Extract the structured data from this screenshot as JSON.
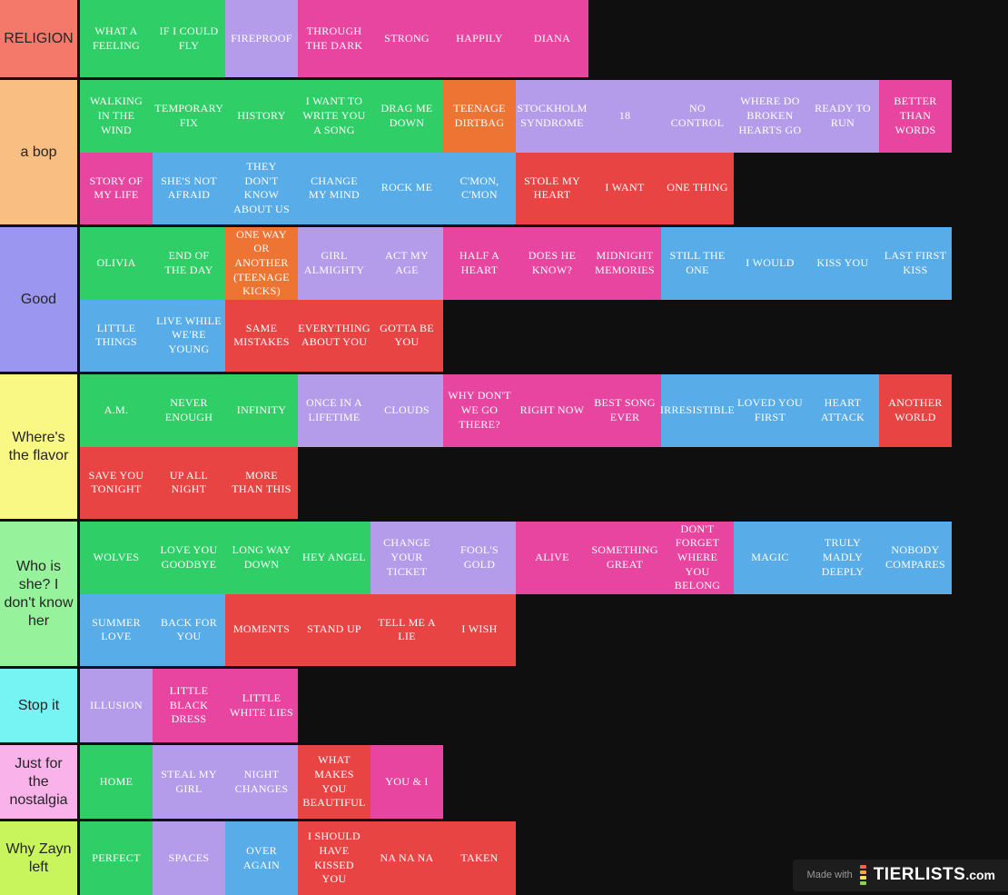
{
  "page": {
    "background": "#0f0f0f",
    "label_text_color": "#252525",
    "tile_text_color": "#ffffff"
  },
  "palette": {
    "green": "#2fce66",
    "orange": "#ee7434",
    "purple": "#b49ceb",
    "magenta": "#e7459f",
    "blue": "#58ace8",
    "red": "#e84444"
  },
  "tiers": [
    {
      "label": "RELIGION",
      "label_color": "#f4796b",
      "rows": [
        [
          {
            "title": "WHAT A FEELING",
            "color": "green"
          },
          {
            "title": "IF I COULD FLY",
            "color": "green"
          },
          {
            "title": "FIREPROOF",
            "color": "purple"
          },
          {
            "title": "THROUGH THE DARK",
            "color": "magenta"
          },
          {
            "title": "STRONG",
            "color": "magenta"
          },
          {
            "title": "HAPPILY",
            "color": "magenta"
          },
          {
            "title": "DIANA",
            "color": "magenta"
          }
        ]
      ]
    },
    {
      "label": "a bop",
      "label_color": "#f9be82",
      "rows": [
        [
          {
            "title": "WALKING IN THE WIND",
            "color": "green"
          },
          {
            "title": "TEMPORARY FIX",
            "color": "green"
          },
          {
            "title": "HISTORY",
            "color": "green"
          },
          {
            "title": "I WANT TO WRITE YOU A SONG",
            "color": "green"
          },
          {
            "title": "DRAG ME DOWN",
            "color": "green"
          },
          {
            "title": "TEENAGE DIRTBAG",
            "color": "orange"
          },
          {
            "title": "STOCKHOLM SYNDROME",
            "color": "purple"
          },
          {
            "title": "18",
            "color": "purple"
          },
          {
            "title": "NO CONTROL",
            "color": "purple"
          },
          {
            "title": "WHERE DO BROKEN HEARTS GO",
            "color": "purple"
          },
          {
            "title": "READY TO RUN",
            "color": "purple"
          },
          {
            "title": "BETTER THAN WORDS",
            "color": "magenta"
          }
        ],
        [
          {
            "title": "STORY OF MY LIFE",
            "color": "magenta"
          },
          {
            "title": "SHE'S NOT AFRAID",
            "color": "blue"
          },
          {
            "title": "THEY DON'T KNOW ABOUT US",
            "color": "blue"
          },
          {
            "title": "CHANGE MY MIND",
            "color": "blue"
          },
          {
            "title": "ROCK ME",
            "color": "blue"
          },
          {
            "title": "C'MON, C'MON",
            "color": "blue"
          },
          {
            "title": "STOLE MY HEART",
            "color": "red"
          },
          {
            "title": "I WANT",
            "color": "red"
          },
          {
            "title": "ONE THING",
            "color": "red"
          }
        ]
      ]
    },
    {
      "label": "Good",
      "label_color": "#9b97f0",
      "rows": [
        [
          {
            "title": "OLIVIA",
            "color": "green"
          },
          {
            "title": "END OF THE DAY",
            "color": "green"
          },
          {
            "title": "ONE WAY OR ANOTHER (TEENAGE KICKS)",
            "color": "orange"
          },
          {
            "title": "GIRL ALMIGHTY",
            "color": "purple"
          },
          {
            "title": "ACT MY AGE",
            "color": "purple"
          },
          {
            "title": "HALF A HEART",
            "color": "magenta"
          },
          {
            "title": "DOES HE KNOW?",
            "color": "magenta"
          },
          {
            "title": "MIDNIGHT MEMORIES",
            "color": "magenta"
          },
          {
            "title": "STILL THE ONE",
            "color": "blue"
          },
          {
            "title": "I WOULD",
            "color": "blue"
          },
          {
            "title": "KISS YOU",
            "color": "blue"
          },
          {
            "title": "LAST FIRST KISS",
            "color": "blue"
          }
        ],
        [
          {
            "title": "LITTLE THINGS",
            "color": "blue"
          },
          {
            "title": "LIVE WHILE WE'RE YOUNG",
            "color": "blue"
          },
          {
            "title": "SAME MISTAKES",
            "color": "red"
          },
          {
            "title": "EVERYTHING ABOUT YOU",
            "color": "red"
          },
          {
            "title": "GOTTA BE YOU",
            "color": "red"
          }
        ]
      ]
    },
    {
      "label": "Where's the flavor",
      "label_color": "#faf884",
      "rows": [
        [
          {
            "title": "A.M.",
            "color": "green"
          },
          {
            "title": "NEVER ENOUGH",
            "color": "green"
          },
          {
            "title": "INFINITY",
            "color": "green"
          },
          {
            "title": "ONCE IN A LIFETIME",
            "color": "purple"
          },
          {
            "title": "CLOUDS",
            "color": "purple"
          },
          {
            "title": "WHY DON'T WE GO THERE?",
            "color": "magenta"
          },
          {
            "title": "RIGHT NOW",
            "color": "magenta"
          },
          {
            "title": "BEST SONG EVER",
            "color": "magenta"
          },
          {
            "title": "IRRESISTIBLE",
            "color": "blue"
          },
          {
            "title": "LOVED YOU FIRST",
            "color": "blue"
          },
          {
            "title": "HEART ATTACK",
            "color": "blue"
          },
          {
            "title": "ANOTHER WORLD",
            "color": "red"
          }
        ],
        [
          {
            "title": "SAVE YOU TONIGHT",
            "color": "red"
          },
          {
            "title": "UP ALL NIGHT",
            "color": "red"
          },
          {
            "title": "MORE THAN THIS",
            "color": "red"
          }
        ]
      ]
    },
    {
      "label": "Who is she? I don't know her",
      "label_color": "#96f29b",
      "rows": [
        [
          {
            "title": "WOLVES",
            "color": "green"
          },
          {
            "title": "LOVE YOU GOODBYE",
            "color": "green"
          },
          {
            "title": "LONG WAY DOWN",
            "color": "green"
          },
          {
            "title": "HEY ANGEL",
            "color": "green"
          },
          {
            "title": "CHANGE YOUR TICKET",
            "color": "purple"
          },
          {
            "title": "FOOL'S GOLD",
            "color": "purple"
          },
          {
            "title": "ALIVE",
            "color": "magenta"
          },
          {
            "title": "SOMETHING GREAT",
            "color": "magenta"
          },
          {
            "title": "DON'T FORGET WHERE YOU BELONG",
            "color": "magenta"
          },
          {
            "title": "MAGIC",
            "color": "blue"
          },
          {
            "title": "TRULY MADLY DEEPLY",
            "color": "blue"
          },
          {
            "title": "NOBODY COMPARES",
            "color": "blue"
          }
        ],
        [
          {
            "title": "SUMMER LOVE",
            "color": "blue"
          },
          {
            "title": "BACK FOR YOU",
            "color": "blue"
          },
          {
            "title": "MOMENTS",
            "color": "red"
          },
          {
            "title": "STAND UP",
            "color": "red"
          },
          {
            "title": "TELL ME A LIE",
            "color": "red"
          },
          {
            "title": "I WISH",
            "color": "red"
          }
        ]
      ]
    },
    {
      "label": "Stop it",
      "label_color": "#76f3f3",
      "rows": [
        [
          {
            "title": "ILLUSION",
            "color": "purple"
          },
          {
            "title": "LITTLE BLACK DRESS",
            "color": "magenta"
          },
          {
            "title": "LITTLE WHITE LIES",
            "color": "magenta"
          }
        ]
      ]
    },
    {
      "label": "Just for the nostalgia",
      "label_color": "#f9b2ea",
      "rows": [
        [
          {
            "title": "HOME",
            "color": "green"
          },
          {
            "title": "STEAL MY GIRL",
            "color": "purple"
          },
          {
            "title": "NIGHT CHANGES",
            "color": "purple"
          },
          {
            "title": "WHAT MAKES YOU BEAUTIFUL",
            "color": "red"
          },
          {
            "title": "YOU & I",
            "color": "magenta"
          }
        ]
      ]
    },
    {
      "label": "Why Zayn left",
      "label_color": "#c8f55b",
      "rows": [
        [
          {
            "title": "PERFECT",
            "color": "green"
          },
          {
            "title": "SPACES",
            "color": "purple"
          },
          {
            "title": "OVER AGAIN",
            "color": "blue"
          },
          {
            "title": "I SHOULD HAVE KISSED YOU",
            "color": "red"
          },
          {
            "title": "NA NA NA",
            "color": "red"
          },
          {
            "title": "TAKEN",
            "color": "red"
          }
        ]
      ]
    }
  ],
  "footer": {
    "made_with": "Made with",
    "brand": "TIERLISTS",
    "brand_suffix": ".com",
    "logo_bar_colors": [
      "#f25f5c",
      "#f9a13e",
      "#f7e448",
      "#8bd448"
    ]
  }
}
